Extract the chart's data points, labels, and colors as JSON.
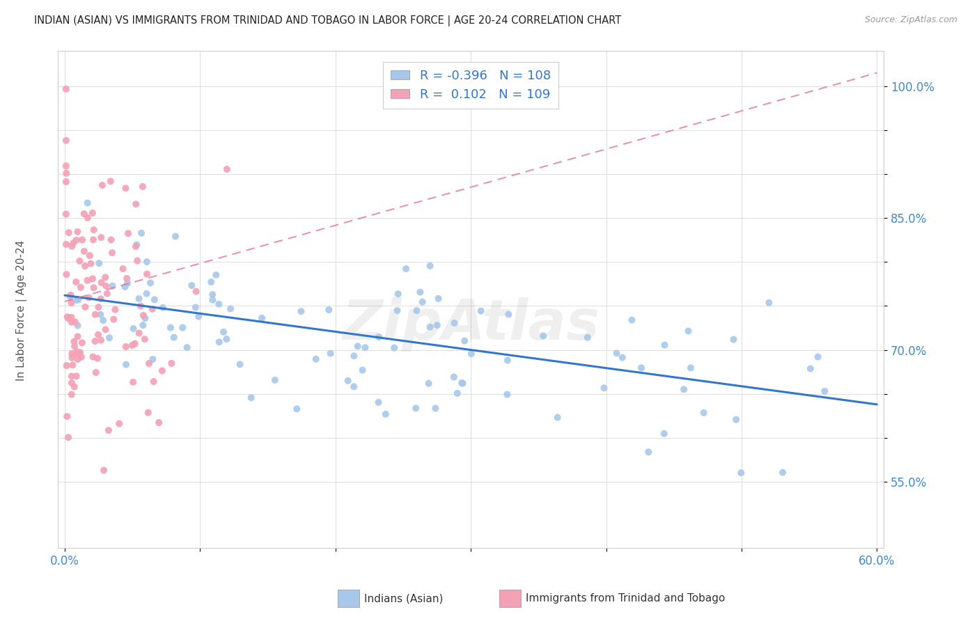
{
  "title": "INDIAN (ASIAN) VS IMMIGRANTS FROM TRINIDAD AND TOBAGO IN LABOR FORCE | AGE 20-24 CORRELATION CHART",
  "source": "Source: ZipAtlas.com",
  "ylabel": "In Labor Force | Age 20-24",
  "xlim": [
    -0.005,
    0.605
  ],
  "ylim": [
    0.475,
    1.04
  ],
  "xtick_positions": [
    0.0,
    0.1,
    0.2,
    0.3,
    0.4,
    0.5,
    0.6
  ],
  "xticklabels": [
    "0.0%",
    "",
    "",
    "",
    "",
    "",
    "60.0%"
  ],
  "ytick_positions": [
    0.55,
    0.6,
    0.65,
    0.7,
    0.75,
    0.8,
    0.85,
    0.9,
    0.95,
    1.0
  ],
  "yticklabels": [
    "55.0%",
    "",
    "",
    "70.0%",
    "",
    "",
    "85.0%",
    "",
    "",
    "100.0%"
  ],
  "blue_R": -0.396,
  "blue_N": 108,
  "pink_R": 0.102,
  "pink_N": 109,
  "blue_color": "#a8c8ea",
  "pink_color": "#f4a0b5",
  "blue_line_color": "#3377cc",
  "pink_line_color": "#e07090",
  "legend_label_blue": "Indians (Asian)",
  "legend_label_pink": "Immigrants from Trinidad and Tobago",
  "blue_trend_x": [
    0.0,
    0.6
  ],
  "blue_trend_y": [
    0.762,
    0.638
  ],
  "pink_trend_x": [
    0.0,
    0.6
  ],
  "pink_trend_y": [
    0.755,
    1.015
  ]
}
